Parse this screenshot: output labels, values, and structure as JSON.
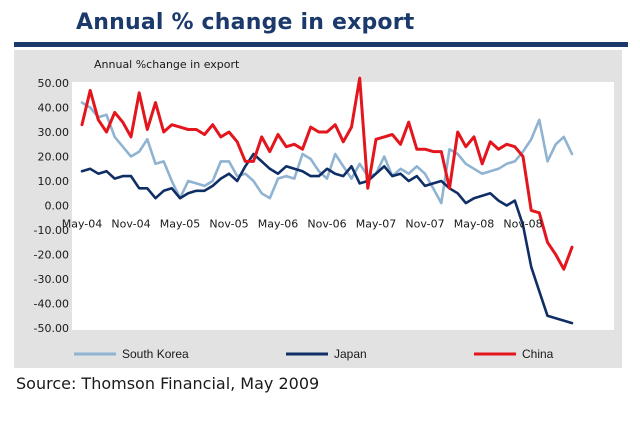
{
  "header": {
    "title": "Annual % change in export"
  },
  "footer": {
    "source": "Source: Thomson Financial, May 2009"
  },
  "colors": {
    "title": "#1b3a6b",
    "panel": "#e2e2e2",
    "plot": "#ffffff"
  },
  "chart_data": {
    "type": "line",
    "title": "Annual %change in export",
    "xlabel": "",
    "ylabel": "",
    "ylim": [
      -50,
      50
    ],
    "yticks": [
      50,
      40,
      30,
      20,
      10,
      0,
      -10,
      -20,
      -30,
      -40,
      -50
    ],
    "ytick_labels": [
      "50.00",
      "40.00",
      "30.00",
      "20.00",
      "10.00",
      "0.00",
      "-10.00",
      "-20.00",
      "-30.00",
      "-40.00",
      "-50.00"
    ],
    "xtick_labels": [
      "May-04",
      "Nov-04",
      "May-05",
      "Nov-05",
      "May-06",
      "Nov-06",
      "May-07",
      "Nov-07",
      "May-08",
      "Nov-08"
    ],
    "xtick_index": [
      0,
      6,
      12,
      18,
      24,
      30,
      36,
      42,
      48,
      54
    ],
    "x_count": 61,
    "legend_position": "bottom",
    "grid": false,
    "series": [
      {
        "name": "South Korea",
        "color": "#8fb3d1",
        "values": [
          42,
          40,
          36,
          37,
          28,
          24,
          20,
          22,
          27,
          17,
          18,
          10,
          3,
          10,
          9,
          8,
          10,
          18,
          18,
          12,
          13,
          10,
          5,
          3,
          11,
          12,
          11,
          21,
          19,
          14,
          11,
          21,
          16,
          11,
          17,
          12,
          13,
          20,
          12,
          15,
          13,
          16,
          13,
          7,
          1,
          23,
          21,
          17,
          15,
          13,
          14,
          15,
          17,
          18,
          22,
          27,
          35,
          18,
          25,
          28,
          21
        ]
      },
      {
        "name": "Japan",
        "color": "#102e66",
        "values": [
          14,
          15,
          13,
          14,
          11,
          12,
          12,
          7,
          7,
          3,
          6,
          7,
          3,
          5,
          6,
          6,
          8,
          11,
          13,
          10,
          16,
          21,
          18,
          15,
          13,
          16,
          15,
          14,
          12,
          12,
          15,
          13,
          12,
          16,
          9,
          10,
          13,
          16,
          12,
          13,
          10,
          12,
          8,
          9,
          10,
          7,
          5,
          1,
          3,
          4,
          5,
          2,
          0,
          2,
          -8,
          -25,
          -35,
          -45,
          -46,
          -47,
          -48
        ]
      },
      {
        "name": "China",
        "color": "#e3161e",
        "values": [
          33,
          47,
          35,
          30,
          38,
          34,
          28,
          46,
          31,
          42,
          30,
          33,
          32,
          31,
          31,
          29,
          33,
          28,
          30,
          26,
          18,
          18,
          28,
          22,
          29,
          24,
          25,
          23,
          32,
          30,
          30,
          33,
          26,
          32,
          52,
          7,
          27,
          28,
          29,
          25,
          34,
          23,
          23,
          22,
          22,
          7,
          30,
          24,
          28,
          17,
          26,
          23,
          25,
          24,
          20,
          -2,
          -3,
          -15,
          -20,
          -26,
          -17
        ]
      }
    ]
  }
}
